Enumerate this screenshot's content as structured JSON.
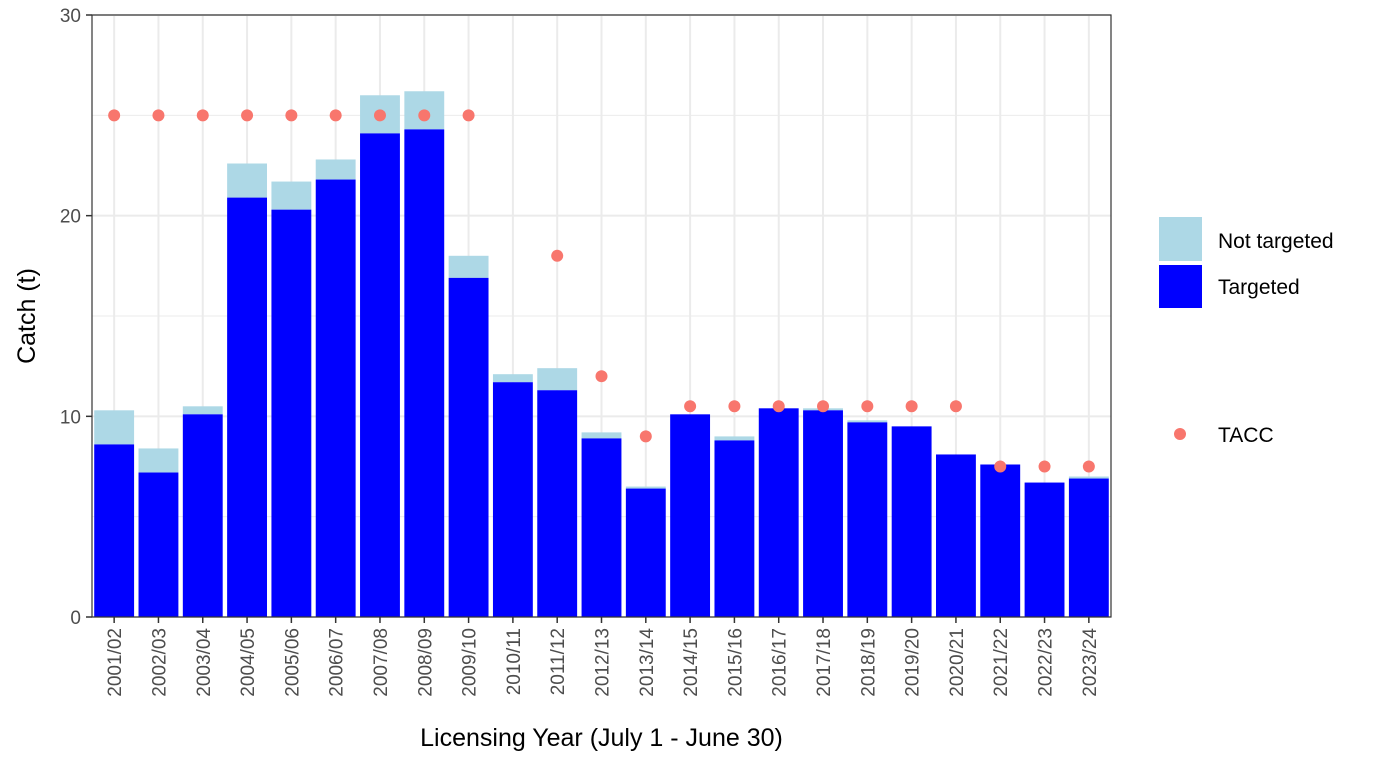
{
  "chart_data": {
    "type": "bar",
    "stacked": true,
    "xlabel": "Licensing Year (July 1 - June 30)",
    "ylabel": "Catch (t)",
    "ylim": [
      0,
      30
    ],
    "yticks": [
      0,
      10,
      20,
      30
    ],
    "grid": true,
    "legend_position": "right",
    "categories": [
      "2001/02",
      "2002/03",
      "2003/04",
      "2004/05",
      "2005/06",
      "2006/07",
      "2007/08",
      "2008/09",
      "2009/10",
      "2010/11",
      "2011/12",
      "2012/13",
      "2013/14",
      "2014/15",
      "2015/16",
      "2016/17",
      "2017/18",
      "2018/19",
      "2019/20",
      "2020/21",
      "2021/22",
      "2022/23",
      "2023/24"
    ],
    "series": [
      {
        "name": "Targeted",
        "color": "#0000ff",
        "values": [
          8.6,
          7.2,
          10.1,
          20.9,
          20.3,
          21.8,
          24.1,
          24.3,
          16.9,
          11.7,
          11.3,
          8.9,
          6.4,
          10.1,
          8.8,
          10.4,
          10.3,
          9.7,
          9.5,
          8.1,
          7.6,
          6.7,
          6.9
        ]
      },
      {
        "name": "Not targeted",
        "color": "#add8e6",
        "values": [
          1.7,
          1.2,
          0.4,
          1.7,
          1.4,
          1.0,
          1.9,
          1.9,
          1.1,
          0.4,
          1.1,
          0.3,
          0.1,
          0.0,
          0.2,
          0.0,
          0.1,
          0.1,
          0.0,
          0.0,
          0.0,
          0.0,
          0.1
        ]
      }
    ],
    "tacc": {
      "name": "TACC",
      "color": "#f8766d",
      "values": [
        25,
        25,
        25,
        25,
        25,
        25,
        25,
        25,
        25,
        null,
        18,
        12,
        9,
        10.5,
        10.5,
        10.5,
        10.5,
        10.5,
        10.5,
        10.5,
        7.5,
        7.5,
        7.5
      ]
    }
  }
}
